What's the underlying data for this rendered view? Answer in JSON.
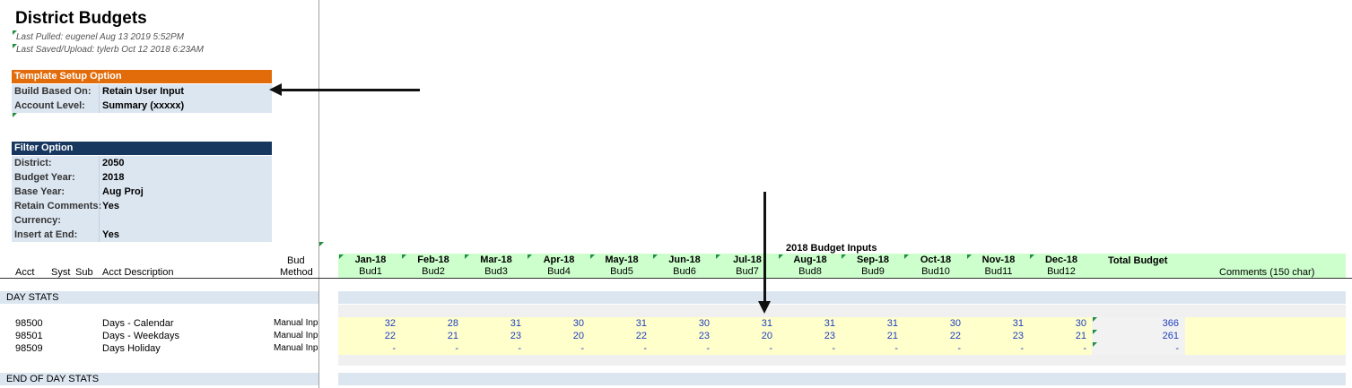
{
  "sheet": {
    "title": "District Budgets",
    "last_pulled": "Last Pulled: eugenel Aug 13 2019 5:52PM",
    "last_saved": "Last Saved/Upload: tylerb Oct 12 2018 6:23AM"
  },
  "template_setup": {
    "heading": "Template Setup Option",
    "header_color": "#e26b0a",
    "rows": [
      {
        "label": "Build Based On:",
        "value": "Retain User Input"
      },
      {
        "label": "Account Level:",
        "value": "Summary (xxxxx)"
      }
    ]
  },
  "filter_option": {
    "heading": "Filter Option",
    "header_color": "#17375e",
    "rows": [
      {
        "label": "District:",
        "value": "2050"
      },
      {
        "label": "Budget Year:",
        "value": "2018"
      },
      {
        "label": "Base Year:",
        "value": "Aug Proj"
      },
      {
        "label": "Retain Comments:",
        "value": "Yes"
      },
      {
        "label": "Currency:",
        "value": ""
      },
      {
        "label": "Insert at End:",
        "value": "Yes"
      }
    ]
  },
  "grid": {
    "headers": {
      "acct": "Acct",
      "syst": "Syst",
      "sub": "Sub",
      "desc": "Acct Description",
      "bud": "Bud",
      "method": "Method",
      "section_title": "2018 Budget Inputs",
      "total": "Total Budget",
      "comments": "Comments (150 char)"
    },
    "months": [
      {
        "month": "Jan-18",
        "bud": "Bud1"
      },
      {
        "month": "Feb-18",
        "bud": "Bud2"
      },
      {
        "month": "Mar-18",
        "bud": "Bud3"
      },
      {
        "month": "Apr-18",
        "bud": "Bud4"
      },
      {
        "month": "May-18",
        "bud": "Bud5"
      },
      {
        "month": "Jun-18",
        "bud": "Bud6"
      },
      {
        "month": "Jul-18",
        "bud": "Bud7"
      },
      {
        "month": "Aug-18",
        "bud": "Bud8"
      },
      {
        "month": "Sep-18",
        "bud": "Bud9"
      },
      {
        "month": "Oct-18",
        "bud": "Bud10"
      },
      {
        "month": "Nov-18",
        "bud": "Bud11"
      },
      {
        "month": "Dec-18",
        "bud": "Bud12"
      }
    ],
    "section_start": "DAY STATS",
    "section_end": "END OF DAY STATS",
    "rows": [
      {
        "acct": "98500",
        "desc": "Days - Calendar",
        "method": "Manual Input",
        "values": [
          "32",
          "28",
          "31",
          "30",
          "31",
          "30",
          "31",
          "31",
          "31",
          "30",
          "31",
          "30"
        ],
        "total": "366"
      },
      {
        "acct": "98501",
        "desc": "Days - Weekdays",
        "method": "Manual Input",
        "values": [
          "22",
          "21",
          "23",
          "20",
          "22",
          "23",
          "20",
          "23",
          "21",
          "22",
          "23",
          "21"
        ],
        "total": "261"
      },
      {
        "acct": "98509",
        "desc": "Days Holiday",
        "method": "Manual Input",
        "values": [
          "-",
          "-",
          "-",
          "-",
          "-",
          "-",
          "-",
          "-",
          "-",
          "-",
          "-",
          "-"
        ],
        "total": "-"
      }
    ]
  }
}
